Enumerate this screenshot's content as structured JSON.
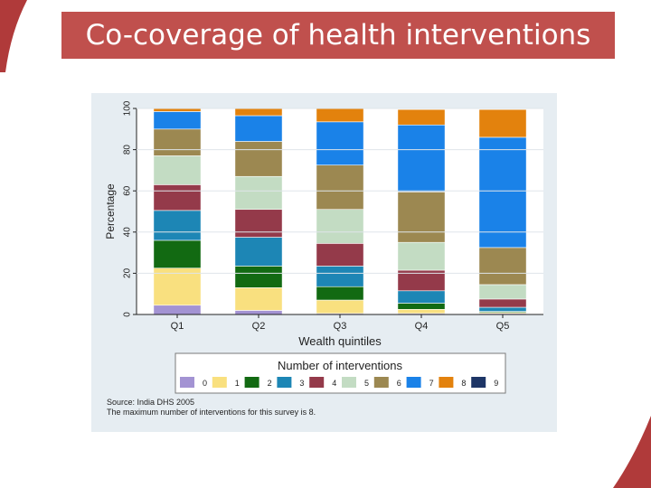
{
  "slide": {
    "title": "Co-coverage of health interventions",
    "accent_color": "#c0504d"
  },
  "chart_data": {
    "type": "bar",
    "stacked": true,
    "xlabel": "Wealth quintiles",
    "ylabel": "Percentage",
    "ylim": [
      0,
      100
    ],
    "yticks": [
      0,
      20,
      40,
      60,
      80,
      100
    ],
    "categories": [
      "Q1",
      "Q2",
      "Q3",
      "Q4",
      "Q5"
    ],
    "legend_title": "Number of interventions",
    "legend_position": "bottom",
    "series": [
      {
        "name": "0",
        "color": "#a393d3",
        "values": [
          4.5,
          2,
          0.5,
          0.5,
          0.5
        ]
      },
      {
        "name": "1",
        "color": "#f9e07f",
        "values": [
          18,
          11,
          6.5,
          2,
          0.5
        ]
      },
      {
        "name": "2",
        "color": "#126a12",
        "values": [
          13.5,
          10.5,
          6.5,
          3,
          0.5
        ]
      },
      {
        "name": "3",
        "color": "#1d86b5",
        "values": [
          14.5,
          14,
          10,
          6,
          2
        ]
      },
      {
        "name": "4",
        "color": "#943a4a",
        "values": [
          12.5,
          13.5,
          11,
          10,
          4
        ]
      },
      {
        "name": "5",
        "color": "#c3dcc3",
        "values": [
          14,
          16,
          16.5,
          13.5,
          7
        ]
      },
      {
        "name": "6",
        "color": "#9c8851",
        "values": [
          13,
          17,
          21.5,
          24.5,
          18
        ]
      },
      {
        "name": "7",
        "color": "#1a82e8",
        "values": [
          8.5,
          12.5,
          21,
          32.5,
          53.5
        ]
      },
      {
        "name": "8",
        "color": "#e3820d",
        "values": [
          1.5,
          3.5,
          6.5,
          7.5,
          13.5
        ]
      },
      {
        "name": "9",
        "color": "#1d3566",
        "values": [
          0,
          0,
          0,
          0,
          0
        ]
      }
    ]
  },
  "footnotes": {
    "source": "Source: India DHS 2005",
    "note": "The maximum number of interventions for this survey is 8."
  }
}
